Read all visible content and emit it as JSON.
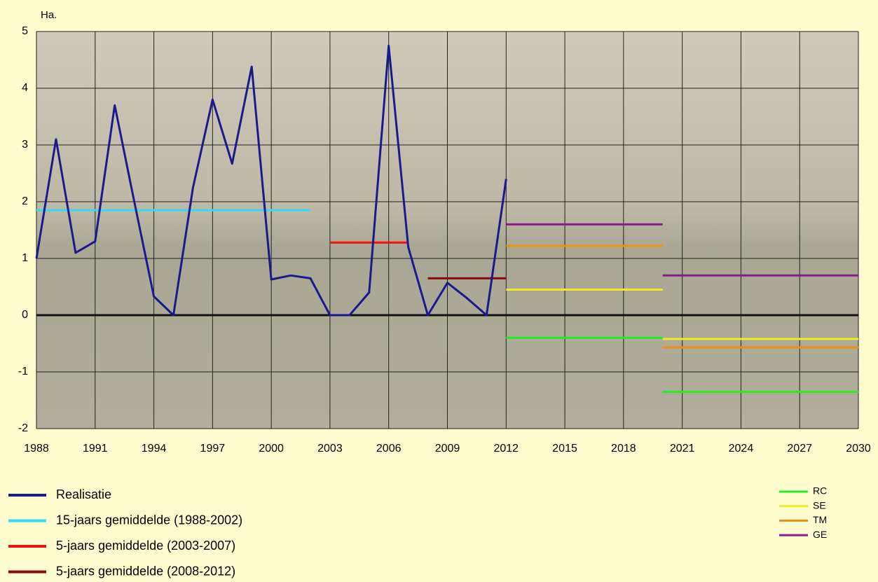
{
  "chart_data": {
    "type": "line",
    "y_label": "Ha.",
    "xlim": [
      1988,
      2030
    ],
    "xticks": [
      1988,
      1991,
      1994,
      1997,
      2000,
      2003,
      2006,
      2009,
      2012,
      2015,
      2018,
      2021,
      2024,
      2027,
      2030
    ],
    "ylim": [
      -2,
      5
    ],
    "yticks": [
      -2,
      -1,
      0,
      1,
      2,
      3,
      4,
      5
    ],
    "grid": true,
    "zero_line": true,
    "series": [
      {
        "name": "Realisatie",
        "color": "#1a1a8c",
        "width": 3,
        "legend": "bottom-left",
        "x": [
          1988,
          1989,
          1990,
          1991,
          1992,
          1993,
          1994,
          1995,
          1996,
          1997,
          1998,
          1999,
          2000,
          2001,
          2002,
          2003,
          2004,
          2005,
          2006,
          2007,
          2008,
          2009,
          2010,
          2011,
          2012
        ],
        "values": [
          1.0,
          3.1,
          1.1,
          1.3,
          3.7,
          2.0,
          0.33,
          0,
          2.25,
          3.8,
          2.67,
          4.38,
          0.63,
          0.7,
          0.65,
          0,
          0,
          0.4,
          4.75,
          1.2,
          0,
          0.57,
          0.3,
          0,
          2.4
        ]
      },
      {
        "name": "15-jaars gemiddelde (1988-2002)",
        "color": "#33ddee",
        "width": 3,
        "legend": "bottom-left",
        "x": [
          1988,
          2002
        ],
        "values": [
          1.85,
          1.85
        ]
      },
      {
        "name": "5-jaars gemiddelde (2003-2007)",
        "color": "#ee1111",
        "width": 3,
        "legend": "bottom-left",
        "x": [
          2003,
          2007
        ],
        "values": [
          1.28,
          1.28
        ]
      },
      {
        "name": "5-jaars gemiddelde (2008-2012)",
        "color": "#8b0a0a",
        "width": 3,
        "legend": "bottom-left",
        "x": [
          2008,
          2012
        ],
        "values": [
          0.65,
          0.65
        ]
      },
      {
        "name": "RC",
        "color": "#22ee22",
        "width": 3,
        "legend": "bottom-right",
        "x": [
          2012,
          2020,
          2020,
          2020,
          2030
        ],
        "values": [
          -0.4,
          -0.4,
          null,
          -1.35,
          -1.35
        ]
      },
      {
        "name": "SE",
        "color": "#eeee22",
        "width": 3,
        "legend": "bottom-right",
        "x": [
          2012,
          2020,
          2020,
          2020,
          2030
        ],
        "values": [
          0.45,
          0.45,
          null,
          -0.42,
          -0.42
        ]
      },
      {
        "name": "TM",
        "color": "#f09010",
        "width": 3,
        "legend": "bottom-right",
        "x": [
          2012,
          2020,
          2020,
          2020,
          2030
        ],
        "values": [
          1.22,
          1.22,
          null,
          -0.57,
          -0.57
        ]
      },
      {
        "name": "GE",
        "color": "#8c1a8c",
        "width": 3,
        "legend": "bottom-right",
        "x": [
          2012,
          2020,
          2020,
          2020,
          2030
        ],
        "values": [
          1.6,
          1.6,
          null,
          0.7,
          0.7
        ]
      }
    ]
  }
}
